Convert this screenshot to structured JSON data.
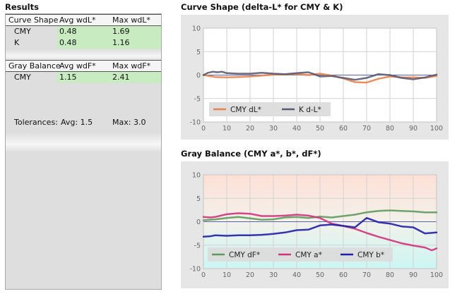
{
  "results": {
    "title": "Results",
    "curve_table": {
      "headers": [
        "Curve Shape",
        "Avg wdL*",
        "Max wdL*"
      ],
      "rows": [
        {
          "label": "CMY",
          "avg": "0.48",
          "max": "1.69"
        },
        {
          "label": "K",
          "avg": "0.48",
          "max": "1.16"
        }
      ]
    },
    "gray_table": {
      "headers": [
        "Gray Balance",
        "Avg wdF*",
        "Max wdF*"
      ],
      "rows": [
        {
          "label": "CMY",
          "avg": "1.15",
          "max": "2.41"
        }
      ]
    },
    "tolerances": {
      "label": "Tolerances:",
      "avg": "Avg: 1.5",
      "max": "Max: 3.0"
    }
  },
  "chart_data": [
    {
      "type": "line",
      "title": "Curve Shape (delta-L* for CMY & K)",
      "xlim": [
        0,
        100
      ],
      "ylim": [
        -10,
        10
      ],
      "x_ticks": [
        0,
        10,
        20,
        30,
        40,
        50,
        60,
        70,
        80,
        90,
        100
      ],
      "y_ticks": [
        10,
        5,
        0,
        -5,
        -10
      ],
      "grid": true,
      "legend_position": "bottom-left",
      "series": [
        {
          "name": "CMY dL*",
          "color": "#e8834a",
          "x": [
            0,
            5,
            10,
            15,
            20,
            25,
            30,
            35,
            40,
            45,
            50,
            55,
            60,
            65,
            70,
            75,
            80,
            85,
            90,
            95,
            100
          ],
          "y": [
            0.0,
            -0.4,
            -0.5,
            -0.4,
            -0.3,
            -0.1,
            0.1,
            0.1,
            0.2,
            0.0,
            0.3,
            -0.1,
            -0.7,
            -1.5,
            -1.6,
            -0.8,
            -0.3,
            -0.5,
            -0.5,
            -0.6,
            -0.2
          ]
        },
        {
          "name": "K d-L*",
          "color": "#5a5a72",
          "x": [
            0,
            2,
            4,
            6,
            8,
            10,
            15,
            20,
            25,
            30,
            35,
            40,
            45,
            48,
            50,
            55,
            60,
            65,
            70,
            75,
            80,
            85,
            90,
            95,
            100
          ],
          "y": [
            0.0,
            0.5,
            0.7,
            0.6,
            0.7,
            0.4,
            0.3,
            0.3,
            0.5,
            0.3,
            0.2,
            0.4,
            0.6,
            0.1,
            -0.3,
            -0.2,
            -0.6,
            -1.0,
            -0.6,
            0.2,
            0.0,
            -0.6,
            -0.9,
            -0.5,
            0.1
          ]
        }
      ]
    },
    {
      "type": "line",
      "title": "Gray Balance (CMY a*, b*, dF*)",
      "xlim": [
        0,
        100
      ],
      "ylim": [
        -10,
        10
      ],
      "x_ticks": [
        0,
        10,
        20,
        30,
        40,
        50,
        60,
        70,
        80,
        90,
        100
      ],
      "y_ticks": [
        10,
        5,
        0,
        -5,
        -10
      ],
      "grid": true,
      "legend_position": "bottom-left",
      "series": [
        {
          "name": "CMY dF*",
          "color": "#5e9a5e",
          "x": [
            0,
            5,
            10,
            15,
            20,
            25,
            30,
            35,
            40,
            45,
            50,
            55,
            60,
            65,
            70,
            75,
            80,
            85,
            90,
            95,
            100
          ],
          "y": [
            0.3,
            0.5,
            0.8,
            1.0,
            0.7,
            0.4,
            0.5,
            0.9,
            1.0,
            0.8,
            1.1,
            0.9,
            1.2,
            1.5,
            2.0,
            2.3,
            2.4,
            2.3,
            2.2,
            2.0,
            2.0
          ]
        },
        {
          "name": "CMY a*",
          "color": "#d0347c",
          "x": [
            0,
            3,
            5,
            10,
            15,
            20,
            25,
            30,
            35,
            40,
            45,
            50,
            55,
            60,
            65,
            70,
            75,
            80,
            85,
            90,
            95,
            98,
            100
          ],
          "y": [
            1.0,
            0.9,
            1.0,
            1.6,
            1.8,
            1.7,
            1.2,
            1.2,
            1.3,
            1.5,
            1.3,
            0.8,
            -0.4,
            -0.9,
            -1.5,
            -2.4,
            -3.2,
            -3.9,
            -4.6,
            -5.1,
            -5.5,
            -6.1,
            -5.7
          ]
        },
        {
          "name": "CMY b*",
          "color": "#2020a8",
          "x": [
            0,
            3,
            5,
            10,
            15,
            20,
            25,
            30,
            35,
            40,
            45,
            50,
            55,
            60,
            65,
            70,
            75,
            80,
            85,
            90,
            95,
            100
          ],
          "y": [
            -3.2,
            -3.1,
            -2.9,
            -3.0,
            -2.9,
            -2.9,
            -2.8,
            -2.6,
            -2.3,
            -1.8,
            -1.7,
            -0.8,
            -0.6,
            -0.9,
            -1.2,
            0.8,
            -0.1,
            -0.4,
            -1.0,
            -1.2,
            -2.5,
            -2.3
          ]
        }
      ]
    }
  ]
}
